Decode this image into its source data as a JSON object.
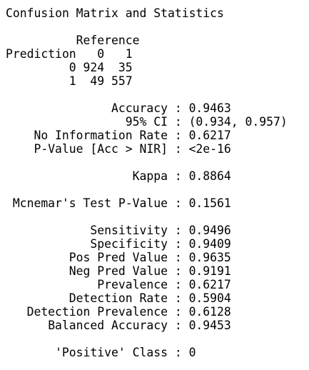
{
  "title": "Confusion Matrix and Statistics",
  "matrix": {
    "reference_label": "Reference",
    "prediction_label": "Prediction",
    "columns": [
      "0",
      "1"
    ],
    "rows": [
      {
        "label": "0",
        "counts": [
          924,
          35
        ]
      },
      {
        "label": "1",
        "counts": [
          49,
          557
        ]
      }
    ]
  },
  "separator": ":",
  "stats": [
    [
      {
        "label": "Accuracy",
        "value": "0.9463"
      },
      {
        "label": "95% CI",
        "value": "(0.934, 0.957)"
      },
      {
        "label": "No Information Rate",
        "value": "0.6217"
      },
      {
        "label": "P-Value [Acc > NIR]",
        "value": "<2e-16"
      }
    ],
    [
      {
        "label": "Kappa",
        "value": "0.8864"
      }
    ],
    [
      {
        "label": "Mcnemar's Test P-Value",
        "value": "0.1561"
      }
    ],
    [
      {
        "label": "Sensitivity",
        "value": "0.9496"
      },
      {
        "label": "Specificity",
        "value": "0.9409"
      },
      {
        "label": "Pos Pred Value",
        "value": "0.9635"
      },
      {
        "label": "Neg Pred Value",
        "value": "0.9191"
      },
      {
        "label": "Prevalence",
        "value": "0.6217"
      },
      {
        "label": "Detection Rate",
        "value": "0.5904"
      },
      {
        "label": "Detection Prevalence",
        "value": "0.6128"
      },
      {
        "label": "Balanced Accuracy",
        "value": "0.9453"
      }
    ],
    [
      {
        "label": "'Positive' Class",
        "value": "0"
      }
    ]
  ]
}
